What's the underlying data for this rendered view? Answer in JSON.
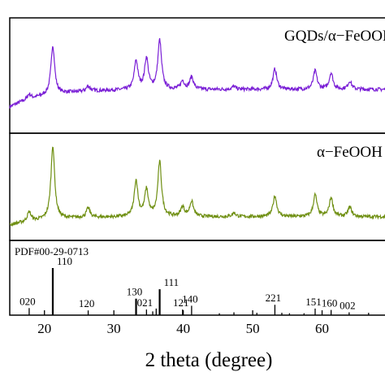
{
  "chart_data": {
    "type": "line",
    "xlabel": "2 theta (degree)",
    "xlim": [
      15,
      70
    ],
    "x_ticks": [
      20,
      30,
      40,
      50,
      60
    ],
    "panels": [
      {
        "label": "GQDs/α−FeOOH",
        "color": "#7a1fd6",
        "baseline": 0.38,
        "peaks": [
          {
            "x": 17.8,
            "h": 0.05
          },
          {
            "x": 21.2,
            "h": 0.48
          },
          {
            "x": 26.3,
            "h": 0.05
          },
          {
            "x": 33.2,
            "h": 0.28
          },
          {
            "x": 34.7,
            "h": 0.3
          },
          {
            "x": 36.6,
            "h": 0.48
          },
          {
            "x": 39.9,
            "h": 0.08
          },
          {
            "x": 41.2,
            "h": 0.12
          },
          {
            "x": 47.3,
            "h": 0.03
          },
          {
            "x": 53.2,
            "h": 0.2
          },
          {
            "x": 59.0,
            "h": 0.18
          },
          {
            "x": 61.3,
            "h": 0.16
          },
          {
            "x": 64.0,
            "h": 0.08
          }
        ]
      },
      {
        "label": "α−FeOOH",
        "color": "#6f8f12",
        "baseline": 0.2,
        "peaks": [
          {
            "x": 17.8,
            "h": 0.1
          },
          {
            "x": 21.2,
            "h": 0.78
          },
          {
            "x": 26.3,
            "h": 0.1
          },
          {
            "x": 33.2,
            "h": 0.38
          },
          {
            "x": 34.7,
            "h": 0.28
          },
          {
            "x": 36.6,
            "h": 0.58
          },
          {
            "x": 39.9,
            "h": 0.1
          },
          {
            "x": 41.2,
            "h": 0.16
          },
          {
            "x": 47.3,
            "h": 0.04
          },
          {
            "x": 53.2,
            "h": 0.22
          },
          {
            "x": 59.0,
            "h": 0.23
          },
          {
            "x": 61.3,
            "h": 0.2
          },
          {
            "x": 64.0,
            "h": 0.1
          }
        ]
      }
    ],
    "reference": {
      "title": "PDF#00-29-0713",
      "lines": [
        {
          "x": 17.8,
          "h": 0.15,
          "label": "020"
        },
        {
          "x": 21.2,
          "h": 1.0,
          "label": "110"
        },
        {
          "x": 26.3,
          "h": 0.1,
          "label": "120"
        },
        {
          "x": 33.2,
          "h": 0.35,
          "label": "130"
        },
        {
          "x": 34.7,
          "h": 0.12,
          "label": "021"
        },
        {
          "x": 35.6,
          "h": 0.08,
          "label": ""
        },
        {
          "x": 36.1,
          "h": 0.14,
          "label": ""
        },
        {
          "x": 36.6,
          "h": 0.55,
          "label": "111"
        },
        {
          "x": 39.9,
          "h": 0.12,
          "label": "121"
        },
        {
          "x": 41.2,
          "h": 0.2,
          "label": "140"
        },
        {
          "x": 45.2,
          "h": 0.04,
          "label": ""
        },
        {
          "x": 47.3,
          "h": 0.06,
          "label": ""
        },
        {
          "x": 50.6,
          "h": 0.05,
          "label": ""
        },
        {
          "x": 53.2,
          "h": 0.22,
          "label": "221"
        },
        {
          "x": 54.2,
          "h": 0.05,
          "label": ""
        },
        {
          "x": 55.3,
          "h": 0.04,
          "label": ""
        },
        {
          "x": 57.4,
          "h": 0.04,
          "label": ""
        },
        {
          "x": 59.0,
          "h": 0.14,
          "label": "151"
        },
        {
          "x": 61.3,
          "h": 0.11,
          "label": "160"
        },
        {
          "x": 63.9,
          "h": 0.06,
          "label": "002"
        },
        {
          "x": 66.7,
          "h": 0.05,
          "label": ""
        }
      ]
    }
  }
}
